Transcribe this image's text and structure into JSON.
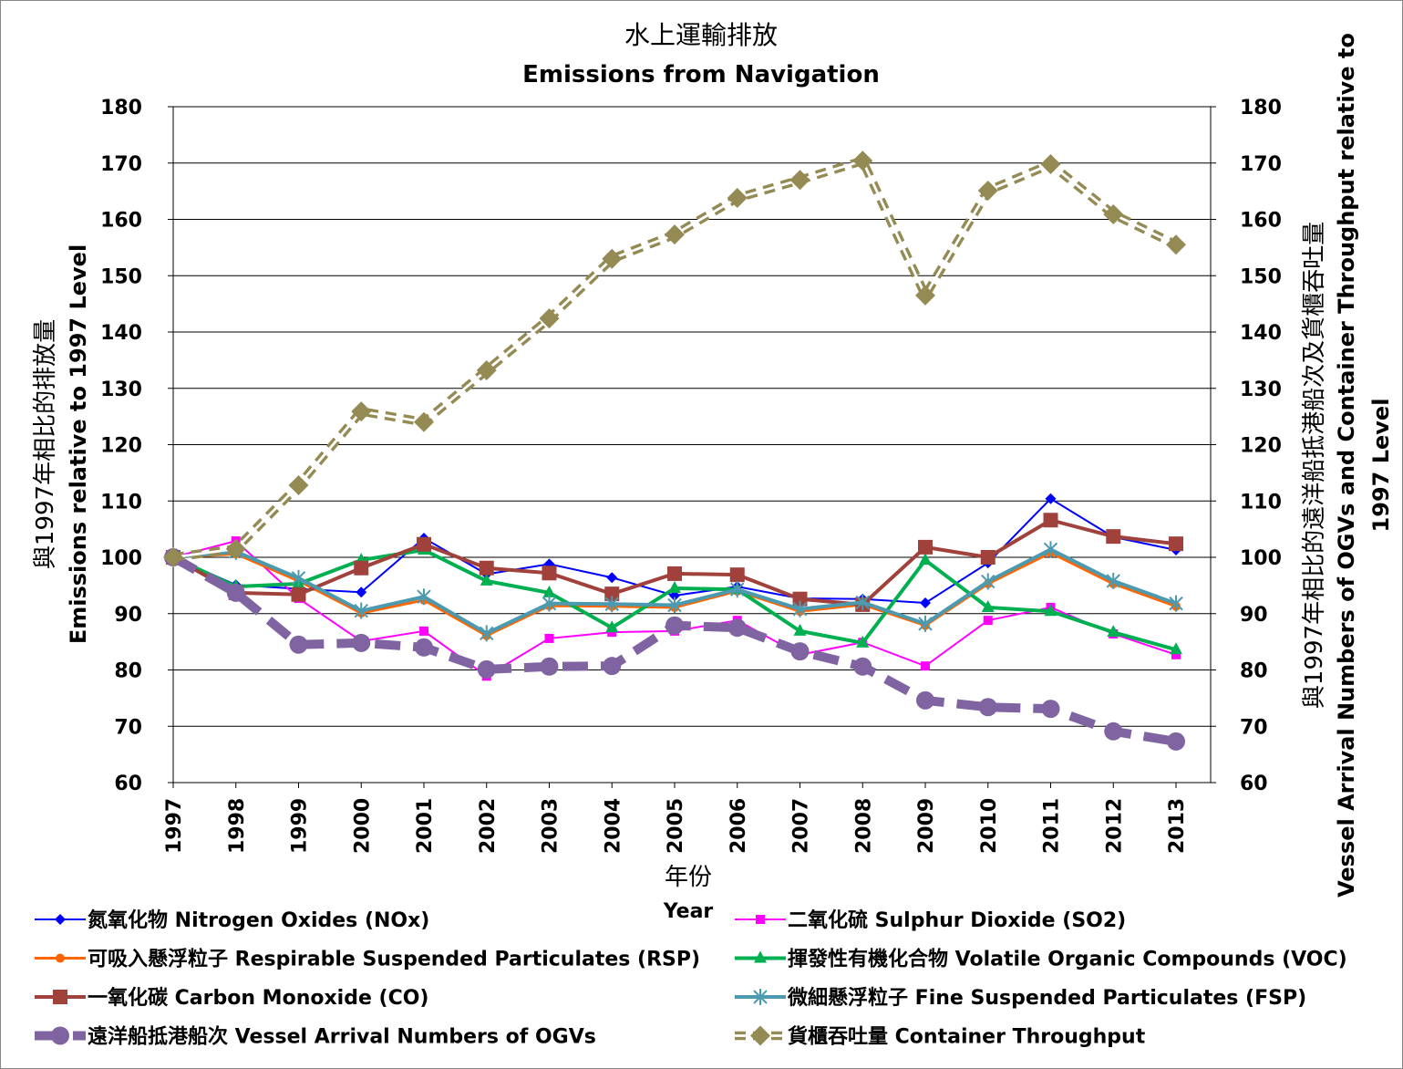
{
  "chart_data": {
    "type": "line",
    "title_zh": "水上運輸排放",
    "title": "Emissions from Navigation",
    "xlabel_zh": "年份",
    "xlabel": "Year",
    "ylabel_zh": "與1997年相比的排放量",
    "ylabel": "Emissions relative to 1997 Level",
    "y2label_zh": "與1997年相比的遠洋船抵港船次及貨櫃吞吐量",
    "y2label": "Vessel Arrival Numbers of OGVs and Container Throughput relative to 1997 Level",
    "ylim": [
      60,
      180
    ],
    "y2lim": [
      60,
      180
    ],
    "yticks": [
      "60",
      "70",
      "80",
      "90",
      "100",
      "110",
      "120",
      "130",
      "140",
      "150",
      "160",
      "170",
      "180"
    ],
    "grid": true,
    "legend_position": "bottom",
    "x": [
      "1997",
      "1998",
      "1999",
      "2000",
      "2001",
      "2002",
      "2003",
      "2004",
      "2005",
      "2006",
      "2007",
      "2008",
      "2009",
      "2010",
      "2011",
      "2012",
      "2013"
    ],
    "series": [
      {
        "name": "氮氧化物 Nitrogen Oxides (NOx)",
        "color": "#0000FF",
        "marker": "diamond",
        "width": 2,
        "dash": "",
        "values": [
          100,
          95.1,
          94.4,
          93.8,
          103.4,
          97,
          98.8,
          96.4,
          93.2,
          94.8,
          92.7,
          92.6,
          91.9,
          99,
          110.4,
          103.6,
          101.3
        ]
      },
      {
        "name": "二氧化硫 Sulphur Dioxide (SO2)",
        "color": "#FF00FF",
        "marker": "square-small",
        "width": 2,
        "dash": "",
        "values": [
          100,
          102.9,
          92.7,
          85.1,
          86.9,
          78.9,
          85.6,
          86.7,
          86.9,
          88.8,
          82.7,
          84.9,
          80.7,
          88.8,
          91.1,
          86.4,
          82.7
        ]
      },
      {
        "name": "可吸入懸浮粒子 Respirable Suspended Particulates (RSP)",
        "color": "#FF6600",
        "marker": "circle-small",
        "width": 3,
        "dash": "",
        "values": [
          100,
          100.6,
          95.8,
          90.1,
          92.4,
          86.1,
          91.4,
          91.3,
          91.1,
          94,
          90.4,
          91.6,
          87.9,
          95.3,
          100.8,
          95.3,
          91.3
        ]
      },
      {
        "name": "揮發性有機化合物 Volatile Organic Compounds (VOC)",
        "color": "#00B050",
        "marker": "triangle",
        "width": 4,
        "dash": "",
        "values": [
          100,
          94.8,
          95.3,
          99.5,
          101.3,
          95.8,
          93.7,
          87.5,
          94.5,
          94.3,
          86.9,
          84.8,
          99.5,
          91.1,
          90.4,
          86.7,
          83.6
        ]
      },
      {
        "name": "一氧化碳 Carbon Monoxide (CO)",
        "color": "#A0413C",
        "marker": "square",
        "width": 4,
        "dash": "",
        "values": [
          100,
          93.7,
          93.4,
          98.1,
          102.3,
          98.1,
          97.2,
          93.5,
          97.1,
          96.9,
          92.6,
          91.6,
          101.8,
          100,
          106.6,
          103.7,
          102.4
        ]
      },
      {
        "name": "微細懸浮粒子 Fine Suspended Particulates (FSP)",
        "color": "#4B9AB0",
        "marker": "star",
        "width": 4,
        "dash": "",
        "values": [
          100,
          101,
          96.3,
          90.5,
          93,
          86.5,
          91.8,
          91.7,
          91.5,
          94.3,
          90.8,
          92,
          88.2,
          95.7,
          101.4,
          95.8,
          91.8
        ]
      },
      {
        "name": "遠洋船抵港船次 Vessel Arrival Numbers of OGVs",
        "color": "#8064A2",
        "marker": "circle",
        "width": 10,
        "dash": "28 14",
        "values": [
          100,
          93.7,
          84.5,
          84.8,
          84,
          80.1,
          80.6,
          80.7,
          87.9,
          87.5,
          83.3,
          80.6,
          74.6,
          73.4,
          73.1,
          69.1,
          67.3
        ]
      },
      {
        "name": "貨櫃吞吐量 Container Throughput",
        "color": "#948A54",
        "marker": "diamond-big",
        "width": 4,
        "dash": "double",
        "values": [
          100,
          101.5,
          112.8,
          125.9,
          124,
          133.2,
          142.4,
          153,
          157.3,
          163.8,
          167,
          170.4,
          146.5,
          165.1,
          169.8,
          160.9,
          155.5
        ]
      }
    ]
  }
}
